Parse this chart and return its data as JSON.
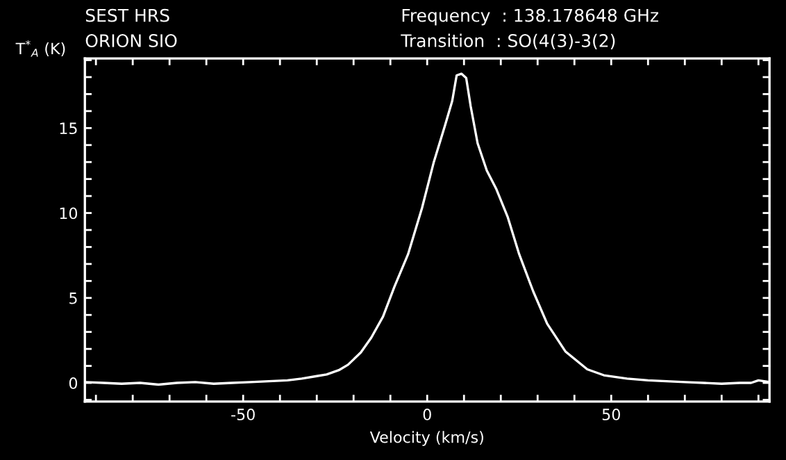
{
  "chart_data": {
    "type": "line",
    "xlabel": "Velocity (km/s)",
    "ylabel": "T$^{*}$$_{A}$ (K)",
    "annotations": [
      "SEST HRS",
      "ORION SIO",
      "Frequency  : 138.178648 GHz",
      "Transition  : SO(4(3)-3(2)"
    ],
    "series": [
      {
        "color": "#ffffff",
        "x": [
          -93,
          -88,
          -83,
          -78,
          -73,
          -68,
          -63,
          -58,
          -53,
          -48,
          -43,
          -38,
          -34.1,
          -30,
          -27.3,
          -24,
          -21.5,
          -18,
          -15.2,
          -12,
          -8.9,
          -5.2,
          -1.4,
          1.8,
          4.9,
          6.8,
          8.0,
          9.3,
          10.6,
          11.8,
          13.7,
          16.2,
          18.8,
          21.9,
          25.0,
          28.8,
          32.6,
          37.6,
          43.5,
          48,
          54.3,
          60,
          65,
          70,
          75,
          80,
          85,
          88,
          90,
          93
        ],
        "values": [
          0.05,
          0.0,
          -0.05,
          0.0,
          -0.1,
          0.0,
          0.05,
          -0.05,
          0.0,
          0.05,
          0.1,
          0.15,
          0.25,
          0.4,
          0.5,
          0.75,
          1.07,
          1.8,
          2.66,
          3.9,
          5.66,
          7.57,
          10.3,
          13.0,
          15.2,
          16.6,
          18.1,
          18.2,
          17.95,
          16.3,
          14.1,
          12.5,
          11.4,
          9.75,
          7.57,
          5.39,
          3.48,
          1.84,
          0.8,
          0.45,
          0.25,
          0.15,
          0.1,
          0.05,
          0.0,
          -0.05,
          0.0,
          0.0,
          0.15,
          0.05
        ]
      }
    ],
    "xlim": [
      -93,
      93
    ],
    "ylim": [
      -1.1,
      19.1
    ],
    "xticks": [
      {
        "value": -90,
        "label": null
      },
      {
        "value": -80,
        "label": null
      },
      {
        "value": -70,
        "label": null
      },
      {
        "value": -60,
        "label": null
      },
      -50,
      {
        "value": -40,
        "label": null
      },
      {
        "value": -30,
        "label": null
      },
      {
        "value": -20,
        "label": null
      },
      {
        "value": -10,
        "label": null
      },
      0,
      {
        "value": 10,
        "label": null
      },
      {
        "value": 20,
        "label": null
      },
      {
        "value": 30,
        "label": null
      },
      {
        "value": 40,
        "label": null
      },
      50,
      {
        "value": 60,
        "label": null
      },
      {
        "value": 70,
        "label": null
      },
      {
        "value": 80,
        "label": null
      },
      {
        "value": 90,
        "label": null
      }
    ],
    "yticks": [
      {
        "value": -1,
        "label": null
      },
      0,
      {
        "value": 1,
        "label": null
      },
      {
        "value": 2,
        "label": null
      },
      {
        "value": 3,
        "label": null
      },
      {
        "value": 4,
        "label": null
      },
      5,
      {
        "value": 6,
        "label": null
      },
      {
        "value": 7,
        "label": null
      },
      {
        "value": 8,
        "label": null
      },
      {
        "value": 9,
        "label": null
      },
      10,
      {
        "value": 11,
        "label": null
      },
      {
        "value": 12,
        "label": null
      },
      {
        "value": 13,
        "label": null
      },
      {
        "value": 14,
        "label": null
      },
      15,
      {
        "value": 16,
        "label": null
      },
      {
        "value": 17,
        "label": null
      },
      {
        "value": 18,
        "label": null
      },
      {
        "value": 19,
        "label": null
      }
    ],
    "grid": false,
    "legend": false
  }
}
